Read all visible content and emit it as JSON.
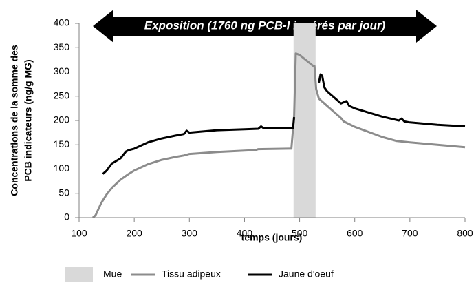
{
  "chart_data": {
    "type": "line",
    "annotation": "Exposition (1760 ng PCB-I ingérés par jour)",
    "xlabel": "temps (jours)",
    "ylabel": [
      "Concentrations de la somme des",
      "PCB indicateurs (ng/g MG)"
    ],
    "xlim": [
      100,
      800
    ],
    "xticks": [
      100,
      200,
      300,
      400,
      500,
      600,
      700,
      800
    ],
    "ylim": [
      0,
      400
    ],
    "yticks": [
      0,
      50,
      100,
      150,
      200,
      250,
      300,
      350,
      400
    ],
    "grid": false,
    "legend": "bottom",
    "band": {
      "name": "Mue",
      "color": "#d9d9d9",
      "x": [
        489,
        529
      ]
    },
    "series": [
      {
        "name": "Tissu adipeux",
        "color": "#8c8c8c",
        "x": [
          125,
          130,
          140,
          150,
          160,
          175,
          190,
          200,
          225,
          250,
          275,
          290,
          300,
          350,
          400,
          420,
          425,
          480,
          485,
          490,
          493,
          500,
          525,
          527,
          530,
          535,
          550,
          575,
          580,
          600,
          650,
          675,
          700,
          750,
          800
        ],
        "values": [
          0,
          5,
          30,
          48,
          62,
          78,
          90,
          97,
          110,
          119,
          125,
          128,
          131,
          135,
          138,
          139,
          141,
          142,
          142,
          210,
          338,
          335,
          312,
          312,
          265,
          245,
          230,
          205,
          198,
          187,
          166,
          158,
          155,
          150,
          145
        ]
      },
      {
        "name": "Jaune d'oeuf",
        "color": "#000000",
        "x": [
          143,
          150,
          155,
          160,
          165,
          175,
          185,
          190,
          200,
          225,
          250,
          275,
          290,
          295,
          300,
          350,
          400,
          425,
          430,
          435,
          480,
          488,
          490,
          512,
          535,
          538,
          541,
          545,
          550,
          575,
          585,
          590,
          600,
          650,
          680,
          685,
          690,
          700,
          750,
          800
        ],
        "values": [
          90,
          97,
          105,
          112,
          115,
          122,
          136,
          139,
          142,
          155,
          163,
          169,
          172,
          179,
          175,
          180,
          182,
          183,
          188,
          184,
          184,
          184,
          207,
          null,
          278,
          295,
          292,
          268,
          260,
          235,
          240,
          230,
          225,
          208,
          200,
          204,
          198,
          196,
          191,
          188
        ]
      }
    ]
  }
}
